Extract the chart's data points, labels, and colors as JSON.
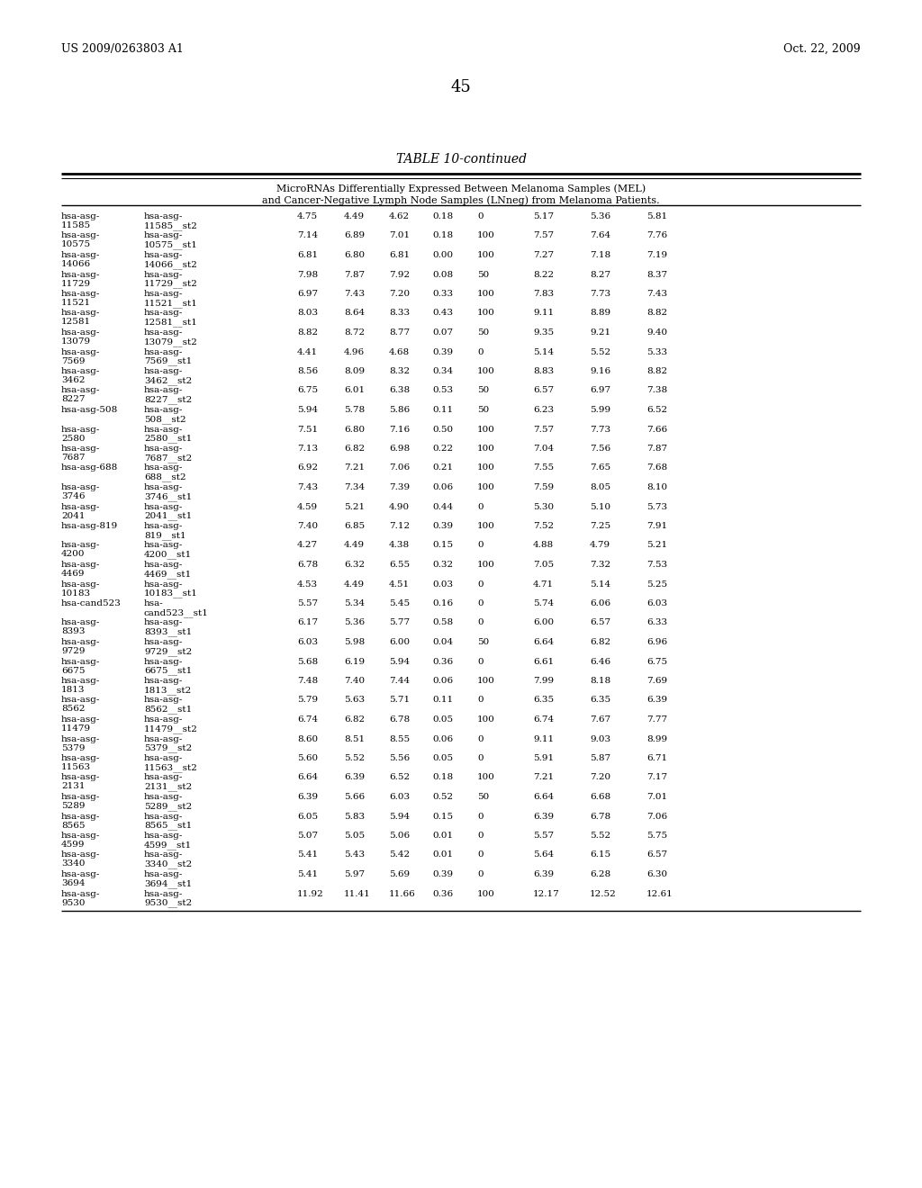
{
  "header_left": "US 2009/0263803 A1",
  "header_right": "Oct. 22, 2009",
  "page_number": "45",
  "table_title": "TABLE 10-continued",
  "table_subtitle_line1": "MicroRNAs Differentially Expressed Between Melanoma Samples (MEL)",
  "table_subtitle_line2": "and Cancer-Negative Lymph Node Samples (LNneg) from Melanoma Patients.",
  "rows": [
    [
      "hsa-asg-\n11585",
      "hsa-asg-\n11585__st2",
      "4.75",
      "4.49",
      "4.62",
      "0.18",
      "0",
      "5.17",
      "5.36",
      "5.81"
    ],
    [
      "hsa-asg-\n10575",
      "hsa-asg-\n10575__st1",
      "7.14",
      "6.89",
      "7.01",
      "0.18",
      "100",
      "7.57",
      "7.64",
      "7.76"
    ],
    [
      "hsa-asg-\n14066",
      "hsa-asg-\n14066__st2",
      "6.81",
      "6.80",
      "6.81",
      "0.00",
      "100",
      "7.27",
      "7.18",
      "7.19"
    ],
    [
      "hsa-asg-\n11729",
      "hsa-asg-\n11729__st2",
      "7.98",
      "7.87",
      "7.92",
      "0.08",
      "50",
      "8.22",
      "8.27",
      "8.37"
    ],
    [
      "hsa-asg-\n11521",
      "hsa-asg-\n11521__st1",
      "6.97",
      "7.43",
      "7.20",
      "0.33",
      "100",
      "7.83",
      "7.73",
      "7.43"
    ],
    [
      "hsa-asg-\n12581",
      "hsa-asg-\n12581__st1",
      "8.03",
      "8.64",
      "8.33",
      "0.43",
      "100",
      "9.11",
      "8.89",
      "8.82"
    ],
    [
      "hsa-asg-\n13079",
      "hsa-asg-\n13079__st2",
      "8.82",
      "8.72",
      "8.77",
      "0.07",
      "50",
      "9.35",
      "9.21",
      "9.40"
    ],
    [
      "hsa-asg-\n7569",
      "hsa-asg-\n7569__st1",
      "4.41",
      "4.96",
      "4.68",
      "0.39",
      "0",
      "5.14",
      "5.52",
      "5.33"
    ],
    [
      "hsa-asg-\n3462",
      "hsa-asg-\n3462__st2",
      "8.56",
      "8.09",
      "8.32",
      "0.34",
      "100",
      "8.83",
      "9.16",
      "8.82"
    ],
    [
      "hsa-asg-\n8227",
      "hsa-asg-\n8227__st2",
      "6.75",
      "6.01",
      "6.38",
      "0.53",
      "50",
      "6.57",
      "6.97",
      "7.38"
    ],
    [
      "hsa-asg-508",
      "hsa-asg-\n508__st2",
      "5.94",
      "5.78",
      "5.86",
      "0.11",
      "50",
      "6.23",
      "5.99",
      "6.52"
    ],
    [
      "hsa-asg-\n2580",
      "hsa-asg-\n2580__st1",
      "7.51",
      "6.80",
      "7.16",
      "0.50",
      "100",
      "7.57",
      "7.73",
      "7.66"
    ],
    [
      "hsa-asg-\n7687",
      "hsa-asg-\n7687__st2",
      "7.13",
      "6.82",
      "6.98",
      "0.22",
      "100",
      "7.04",
      "7.56",
      "7.87"
    ],
    [
      "hsa-asg-688",
      "hsa-asg-\n688__st2",
      "6.92",
      "7.21",
      "7.06",
      "0.21",
      "100",
      "7.55",
      "7.65",
      "7.68"
    ],
    [
      "hsa-asg-\n3746",
      "hsa-asg-\n3746__st1",
      "7.43",
      "7.34",
      "7.39",
      "0.06",
      "100",
      "7.59",
      "8.05",
      "8.10"
    ],
    [
      "hsa-asg-\n2041",
      "hsa-asg-\n2041__st1",
      "4.59",
      "5.21",
      "4.90",
      "0.44",
      "0",
      "5.30",
      "5.10",
      "5.73"
    ],
    [
      "hsa-asg-819",
      "hsa-asg-\n819__st1",
      "7.40",
      "6.85",
      "7.12",
      "0.39",
      "100",
      "7.52",
      "7.25",
      "7.91"
    ],
    [
      "hsa-asg-\n4200",
      "hsa-asg-\n4200__st1",
      "4.27",
      "4.49",
      "4.38",
      "0.15",
      "0",
      "4.88",
      "4.79",
      "5.21"
    ],
    [
      "hsa-asg-\n4469",
      "hsa-asg-\n4469__st1",
      "6.78",
      "6.32",
      "6.55",
      "0.32",
      "100",
      "7.05",
      "7.32",
      "7.53"
    ],
    [
      "hsa-asg-\n10183",
      "hsa-asg-\n10183__st1",
      "4.53",
      "4.49",
      "4.51",
      "0.03",
      "0",
      "4.71",
      "5.14",
      "5.25"
    ],
    [
      "hsa-cand523",
      "hsa-\ncand523__st1",
      "5.57",
      "5.34",
      "5.45",
      "0.16",
      "0",
      "5.74",
      "6.06",
      "6.03"
    ],
    [
      "hsa-asg-\n8393",
      "hsa-asg-\n8393__st1",
      "6.17",
      "5.36",
      "5.77",
      "0.58",
      "0",
      "6.00",
      "6.57",
      "6.33"
    ],
    [
      "hsa-asg-\n9729",
      "hsa-asg-\n9729__st2",
      "6.03",
      "5.98",
      "6.00",
      "0.04",
      "50",
      "6.64",
      "6.82",
      "6.96"
    ],
    [
      "hsa-asg-\n6675",
      "hsa-asg-\n6675__st1",
      "5.68",
      "6.19",
      "5.94",
      "0.36",
      "0",
      "6.61",
      "6.46",
      "6.75"
    ],
    [
      "hsa-asg-\n1813",
      "hsa-asg-\n1813__st2",
      "7.48",
      "7.40",
      "7.44",
      "0.06",
      "100",
      "7.99",
      "8.18",
      "7.69"
    ],
    [
      "hsa-asg-\n8562",
      "hsa-asg-\n8562__st1",
      "5.79",
      "5.63",
      "5.71",
      "0.11",
      "0",
      "6.35",
      "6.35",
      "6.39"
    ],
    [
      "hsa-asg-\n11479",
      "hsa-asg-\n11479__st2",
      "6.74",
      "6.82",
      "6.78",
      "0.05",
      "100",
      "6.74",
      "7.67",
      "7.77"
    ],
    [
      "hsa-asg-\n5379",
      "hsa-asg-\n5379__st2",
      "8.60",
      "8.51",
      "8.55",
      "0.06",
      "0",
      "9.11",
      "9.03",
      "8.99"
    ],
    [
      "hsa-asg-\n11563",
      "hsa-asg-\n11563__st2",
      "5.60",
      "5.52",
      "5.56",
      "0.05",
      "0",
      "5.91",
      "5.87",
      "6.71"
    ],
    [
      "hsa-asg-\n2131",
      "hsa-asg-\n2131__st2",
      "6.64",
      "6.39",
      "6.52",
      "0.18",
      "100",
      "7.21",
      "7.20",
      "7.17"
    ],
    [
      "hsa-asg-\n5289",
      "hsa-asg-\n5289__st2",
      "6.39",
      "5.66",
      "6.03",
      "0.52",
      "50",
      "6.64",
      "6.68",
      "7.01"
    ],
    [
      "hsa-asg-\n8565",
      "hsa-asg-\n8565__st1",
      "6.05",
      "5.83",
      "5.94",
      "0.15",
      "0",
      "6.39",
      "6.78",
      "7.06"
    ],
    [
      "hsa-asg-\n4599",
      "hsa-asg-\n4599__st1",
      "5.07",
      "5.05",
      "5.06",
      "0.01",
      "0",
      "5.57",
      "5.52",
      "5.75"
    ],
    [
      "hsa-asg-\n3340",
      "hsa-asg-\n3340__st2",
      "5.41",
      "5.43",
      "5.42",
      "0.01",
      "0",
      "5.64",
      "6.15",
      "6.57"
    ],
    [
      "hsa-asg-\n3694",
      "hsa-asg-\n3694__st1",
      "5.41",
      "5.97",
      "5.69",
      "0.39",
      "0",
      "6.39",
      "6.28",
      "6.30"
    ],
    [
      "hsa-asg-\n9530",
      "hsa-asg-\n9530__st2",
      "11.92",
      "11.41",
      "11.66",
      "0.36",
      "100",
      "12.17",
      "12.52",
      "12.61"
    ]
  ]
}
